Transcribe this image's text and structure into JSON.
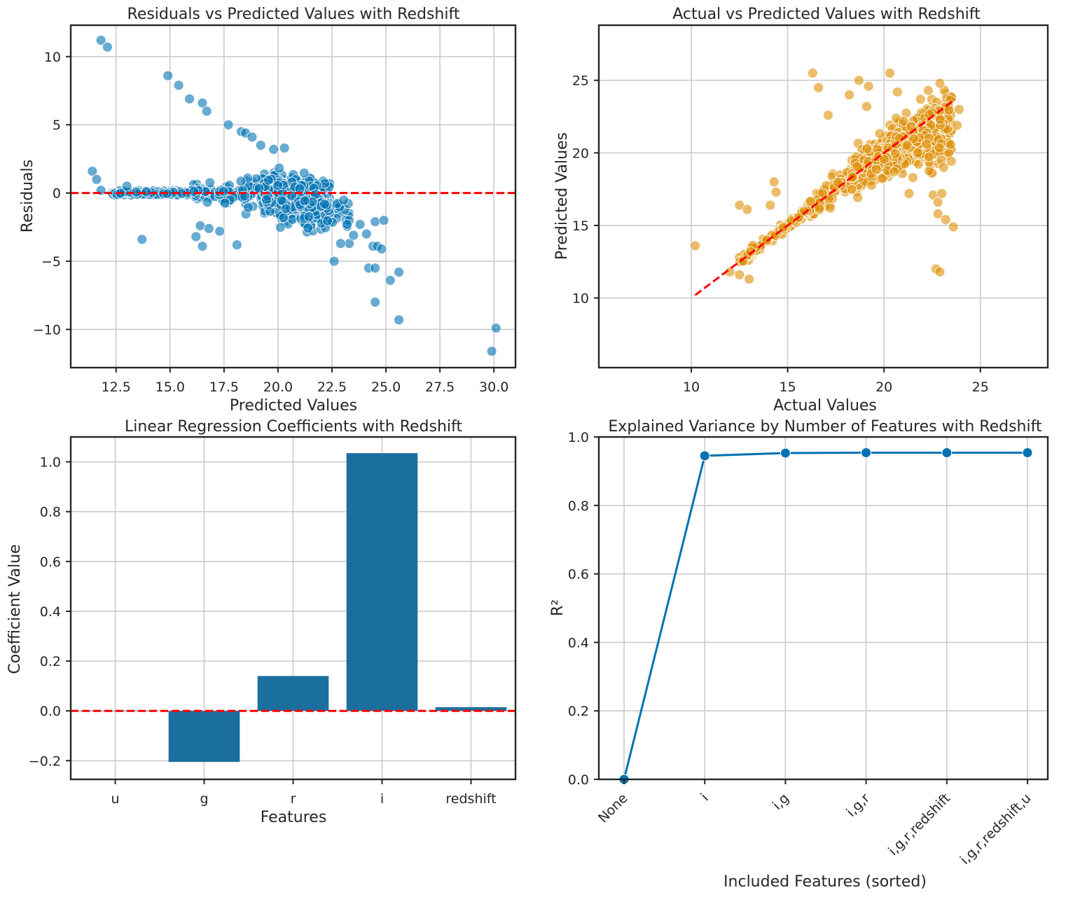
{
  "chart_data": [
    {
      "type": "scatter",
      "title": "Residuals vs Predicted Values with Redshift",
      "xlabel": "Predicted Values",
      "ylabel": "Residuals",
      "xlim": [
        10.4,
        31.0
      ],
      "ylim": [
        -12.8,
        12.3
      ],
      "xticks": [
        12.5,
        15.0,
        17.5,
        20.0,
        22.5,
        25.0,
        27.5,
        30.0
      ],
      "xtick_labels": [
        "12.5",
        "15.0",
        "17.5",
        "20.0",
        "22.5",
        "25.0",
        "27.5",
        "30.0"
      ],
      "yticks": [
        -10,
        -5,
        0,
        5,
        10
      ],
      "ytick_labels": [
        "−10",
        "−5",
        "0",
        "5",
        "10"
      ],
      "grid": true,
      "color": "#0173b2",
      "reference_line": {
        "y": 0,
        "color": "#ff0000",
        "style": "dashed"
      },
      "outliers": [
        [
          11.8,
          11.2
        ],
        [
          12.1,
          10.7
        ],
        [
          14.9,
          8.6
        ],
        [
          15.4,
          7.9
        ],
        [
          15.9,
          6.9
        ],
        [
          16.5,
          6.6
        ],
        [
          16.7,
          6.0
        ],
        [
          17.7,
          5.0
        ],
        [
          18.3,
          4.5
        ],
        [
          18.5,
          4.4
        ],
        [
          18.8,
          4.1
        ],
        [
          19.2,
          3.5
        ],
        [
          19.8,
          3.2
        ],
        [
          20.3,
          3.3
        ],
        [
          11.4,
          1.6
        ],
        [
          11.6,
          1.0
        ],
        [
          11.8,
          0.2
        ],
        [
          13.0,
          0.5
        ],
        [
          13.7,
          -3.4
        ],
        [
          16.2,
          -3.2
        ],
        [
          16.5,
          -3.9
        ],
        [
          16.4,
          -2.4
        ],
        [
          16.8,
          -2.6
        ],
        [
          17.3,
          -2.8
        ],
        [
          18.1,
          -3.8
        ],
        [
          22.6,
          -5.0
        ],
        [
          23.3,
          -3.7
        ],
        [
          23.8,
          -2.3
        ],
        [
          24.1,
          -3.0
        ],
        [
          24.2,
          -5.5
        ],
        [
          24.4,
          -3.9
        ],
        [
          24.5,
          -2.1
        ],
        [
          24.9,
          -2.0
        ],
        [
          24.5,
          -5.5
        ],
        [
          24.6,
          -3.9
        ],
        [
          24.8,
          -4.1
        ],
        [
          24.5,
          -8.0
        ],
        [
          25.2,
          -6.4
        ],
        [
          25.6,
          -5.8
        ],
        [
          25.6,
          -9.3
        ],
        [
          29.9,
          -11.6
        ],
        [
          30.1,
          -9.9
        ],
        [
          23.2,
          -2.3
        ],
        [
          22.9,
          -3.7
        ],
        [
          23.5,
          -3.1
        ]
      ]
    },
    {
      "type": "scatter",
      "title": "Actual vs Predicted Values with Redshift",
      "xlabel": "Actual Values",
      "ylabel": "Predicted Values",
      "xlim": [
        5.2,
        28.5
      ],
      "ylim": [
        5.2,
        28.8
      ],
      "xticks": [
        10,
        15,
        20,
        25
      ],
      "xtick_labels": [
        "10",
        "15",
        "20",
        "25"
      ],
      "yticks": [
        10,
        15,
        20,
        25
      ],
      "ytick_labels": [
        "10",
        "15",
        "20",
        "25"
      ],
      "grid": true,
      "color": "#de8f05",
      "reference_line": {
        "x": [
          10.2,
          23.7
        ],
        "y": [
          10.2,
          23.7
        ],
        "color": "#ff0000",
        "style": "dashed"
      },
      "outliers": [
        [
          10.2,
          13.6
        ],
        [
          12.5,
          16.4
        ],
        [
          12.9,
          16.1
        ],
        [
          12.5,
          11.6
        ],
        [
          13.0,
          11.3
        ],
        [
          14.3,
          18.0
        ],
        [
          14.4,
          17.3
        ],
        [
          14.1,
          16.4
        ],
        [
          16.3,
          25.5
        ],
        [
          16.6,
          24.5
        ],
        [
          17.1,
          22.6
        ],
        [
          18.2,
          24.0
        ],
        [
          18.7,
          25.0
        ],
        [
          19.2,
          24.6
        ],
        [
          19.1,
          23.2
        ],
        [
          20.3,
          25.5
        ],
        [
          20.7,
          24.2
        ],
        [
          20.8,
          21.0
        ],
        [
          21.5,
          18.3
        ],
        [
          21.3,
          17.2
        ],
        [
          22.7,
          12.0
        ],
        [
          22.9,
          11.8
        ],
        [
          22.8,
          15.8
        ],
        [
          22.8,
          16.6
        ],
        [
          23.2,
          15.4
        ],
        [
          23.6,
          14.9
        ],
        [
          23.0,
          17.2
        ],
        [
          23.1,
          19.0
        ],
        [
          22.9,
          24.8
        ],
        [
          23.9,
          23.0
        ],
        [
          23.8,
          21.9
        ],
        [
          22.3,
          24.3
        ],
        [
          21.9,
          23.7
        ],
        [
          12.0,
          11.8
        ]
      ]
    },
    {
      "type": "bar",
      "title": "Linear Regression Coefficients with Redshift",
      "xlabel": "Features",
      "ylabel": "Coefficient Value",
      "categories": [
        "u",
        "g",
        "r",
        "i",
        "redshift"
      ],
      "values": [
        0.0,
        -0.205,
        0.14,
        1.035,
        0.015
      ],
      "ylim": [
        -0.275,
        1.1
      ],
      "yticks": [
        -0.2,
        0.0,
        0.2,
        0.4,
        0.6,
        0.8,
        1.0
      ],
      "ytick_labels": [
        "−0.2",
        "0.0",
        "0.2",
        "0.4",
        "0.6",
        "0.8",
        "1.0"
      ],
      "grid": true,
      "color": "#1a6f9f",
      "reference_line": {
        "y": 0,
        "color": "#ff0000",
        "style": "dashed"
      }
    },
    {
      "type": "line",
      "title": "Explained Variance by Number of Features with Redshift",
      "xlabel": "Included Features (sorted)",
      "ylabel": "R²",
      "categories": [
        "None",
        "i",
        "i,g",
        "i,g,r",
        "i,g,r,redshift",
        "i,g,r,redshift,u"
      ],
      "values": [
        0.0,
        0.945,
        0.953,
        0.954,
        0.954,
        0.954
      ],
      "ylim": [
        0.0,
        1.0
      ],
      "yticks": [
        0.0,
        0.2,
        0.4,
        0.6,
        0.8,
        1.0
      ],
      "ytick_labels": [
        "0.0",
        "0.2",
        "0.4",
        "0.6",
        "0.8",
        "1.0"
      ],
      "grid": true,
      "color": "#0173b2"
    }
  ]
}
